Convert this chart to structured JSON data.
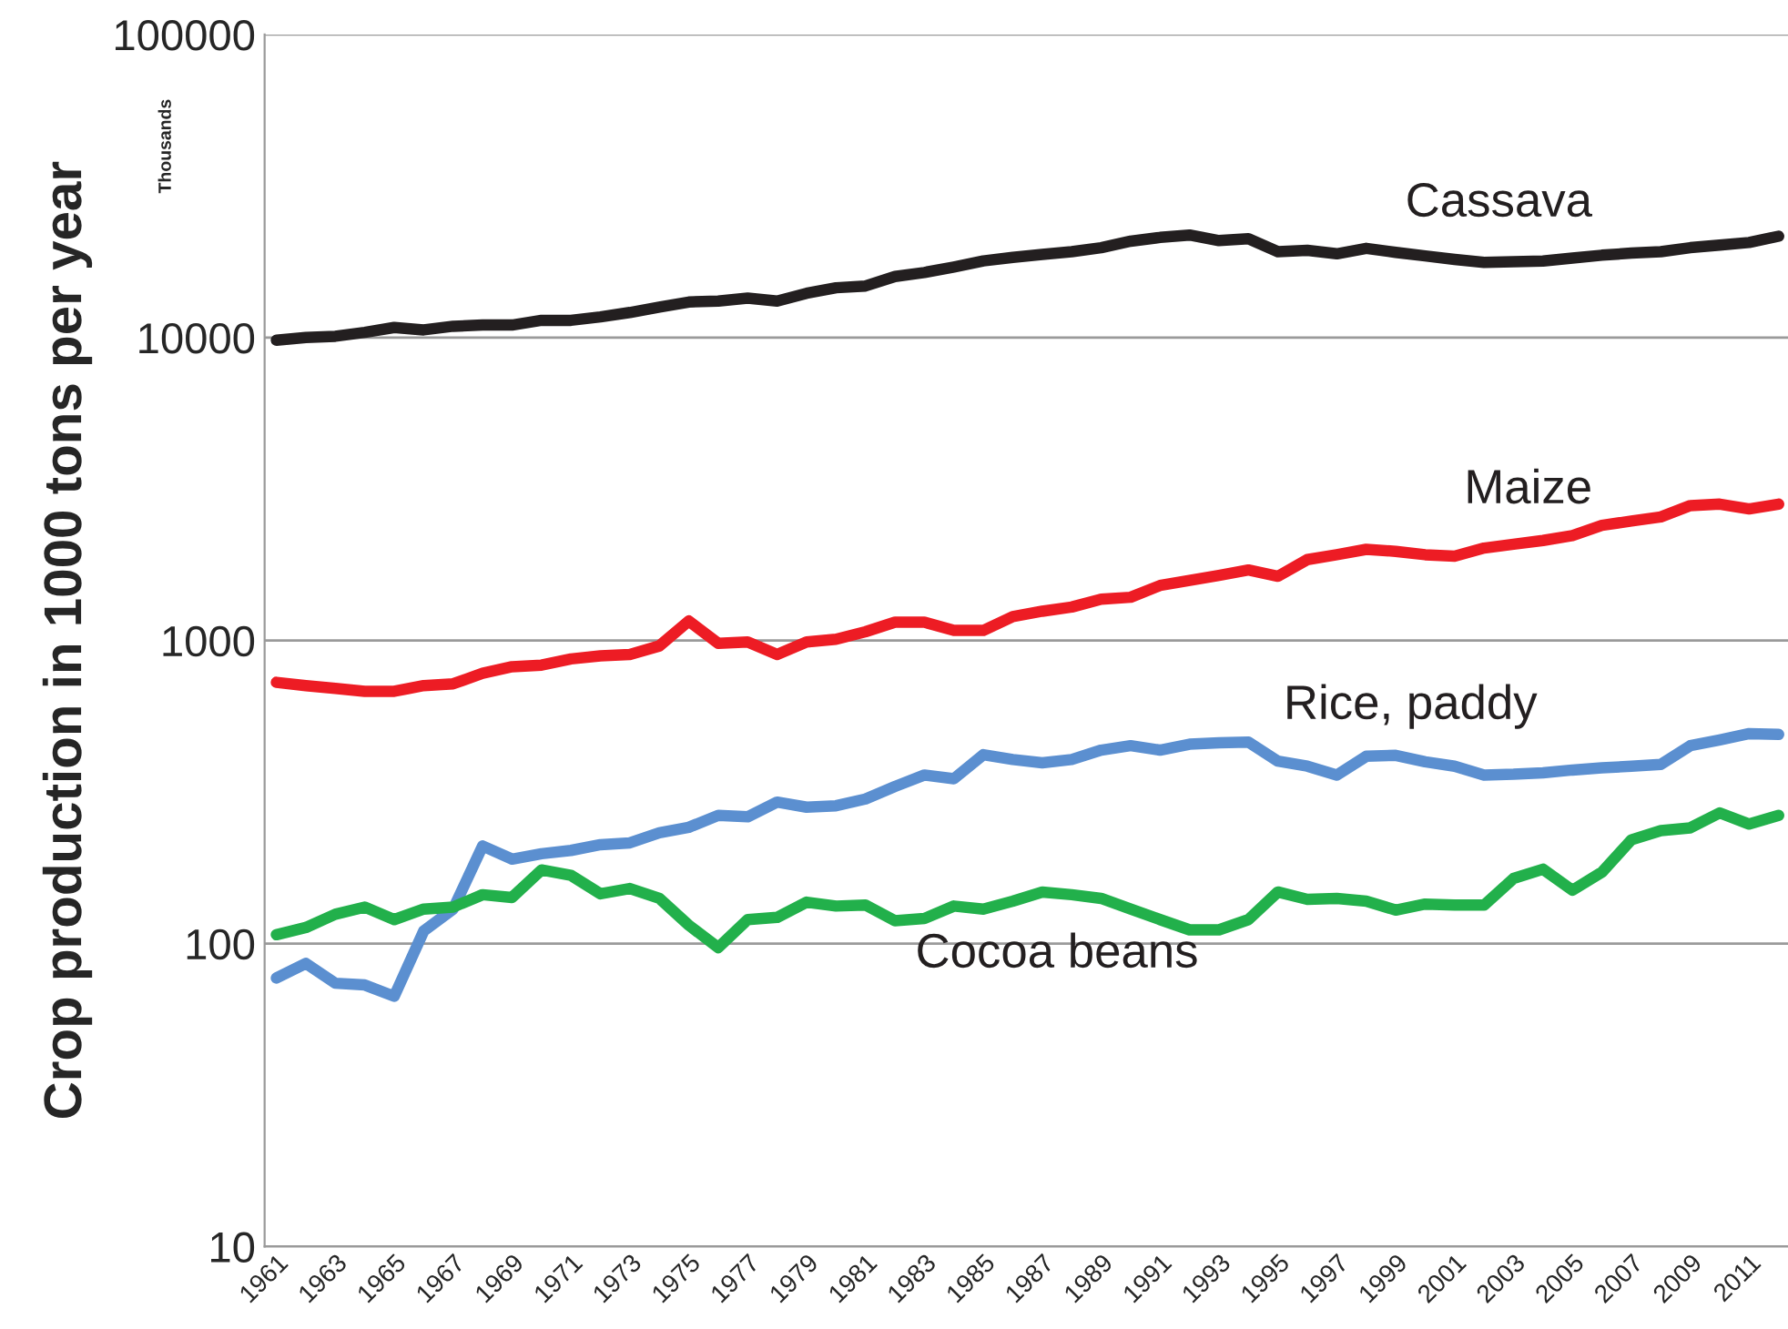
{
  "chart_data": {
    "type": "line",
    "ylabel": "Crop production in 1000 tons per year",
    "annotations": [
      "Thousands"
    ],
    "categories": [
      "1961",
      null,
      "1963",
      null,
      "1965",
      null,
      "1967",
      null,
      "1969",
      null,
      "1971",
      null,
      "1973",
      null,
      "1975",
      null,
      "1977",
      null,
      "1979",
      null,
      "1981",
      null,
      "1983",
      null,
      "1985",
      null,
      "1987",
      null,
      "1989",
      null,
      "1991",
      null,
      "1993",
      null,
      "1995",
      null,
      "1997",
      null,
      "1999",
      null,
      "2001",
      null,
      "2003",
      null,
      "2005",
      null,
      "2007",
      null,
      "2009",
      null,
      "2011",
      null
    ],
    "series": [
      {
        "name": "Cassava",
        "color": "#231f20",
        "values": [
          9800,
          10000,
          10100,
          10400,
          10800,
          10600,
          10900,
          11000,
          11000,
          11400,
          11400,
          11700,
          12100,
          12600,
          13100,
          13200,
          13500,
          13200,
          14000,
          14600,
          14800,
          15900,
          16400,
          17100,
          17900,
          18400,
          18800,
          19200,
          19800,
          20800,
          21400,
          21800,
          20900,
          21200,
          19200,
          19400,
          18900,
          19700,
          19100,
          18600,
          18100,
          17700,
          17800,
          17900,
          18300,
          18700,
          19000,
          19200,
          19800,
          20200,
          20600,
          21600
        ]
      },
      {
        "name": "Maize",
        "color": "#ed1c24",
        "values": [
          728,
          710,
          695,
          680,
          680,
          710,
          720,
          780,
          820,
          830,
          870,
          890,
          900,
          960,
          1160,
          980,
          990,
          900,
          990,
          1010,
          1070,
          1150,
          1150,
          1080,
          1080,
          1200,
          1250,
          1290,
          1370,
          1390,
          1520,
          1580,
          1640,
          1710,
          1630,
          1850,
          1920,
          2000,
          1970,
          1920,
          1900,
          2020,
          2080,
          2140,
          2220,
          2400,
          2480,
          2560,
          2790,
          2820,
          2720,
          2820
        ]
      },
      {
        "name": "Rice, paddy",
        "color": "#5b8fd0",
        "values": [
          77,
          86,
          74,
          73,
          67,
          110,
          130,
          210,
          190,
          198,
          203,
          212,
          215,
          232,
          242,
          265,
          262,
          293,
          282,
          285,
          300,
          330,
          360,
          350,
          420,
          405,
          395,
          405,
          435,
          450,
          435,
          455,
          460,
          462,
          400,
          385,
          360,
          415,
          418,
          398,
          385,
          360,
          362,
          366,
          374,
          380,
          385,
          390,
          450,
          470,
          493,
          490
        ]
      },
      {
        "name": "Cocoa beans",
        "color": "#22b04b",
        "values": [
          107,
          113,
          125,
          132,
          120,
          130,
          132,
          145,
          142,
          175,
          168,
          146,
          152,
          141,
          115,
          97,
          120,
          122,
          137,
          133,
          134,
          119,
          121,
          133,
          130,
          138,
          148,
          145,
          141,
          130,
          120,
          111,
          111,
          120,
          148,
          140,
          141,
          138,
          129,
          135,
          134,
          134,
          164,
          176,
          150,
          172,
          220,
          236,
          241,
          270,
          248,
          265
        ]
      }
    ],
    "log": true,
    "ylim": [
      10,
      100000
    ],
    "yticks": [
      10,
      100,
      1000,
      10000,
      100000
    ],
    "grid": "y",
    "legend": false,
    "marker": "none",
    "line_style": "solid"
  }
}
